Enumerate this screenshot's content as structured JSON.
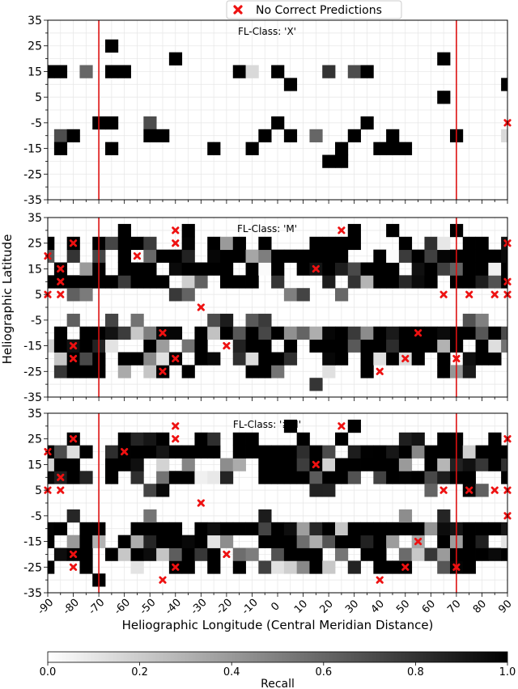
{
  "legend": {
    "label": "No Correct Predictions",
    "marker_color": "#ee1111"
  },
  "ylabel": "Heliographic Latitude",
  "xlabel": "Heliographic Longitude (Central Meridian Distance)",
  "colorbar": {
    "label": "Recall",
    "range": [
      0.0,
      1.0
    ],
    "ticks": [
      "0.0",
      "0.2",
      "0.4",
      "0.6",
      "0.8",
      "1.0"
    ],
    "colormap": [
      "#ffffff",
      "#000000"
    ]
  },
  "limit_line_color": "#dd1111",
  "chart_data": [
    {
      "type": "heatmap",
      "title": "FL-Class: 'X'",
      "bin_size_deg": 5,
      "xlim": [
        -90,
        90
      ],
      "ylim": [
        -35,
        35
      ],
      "xticks": [
        "-90",
        "-80",
        "-70",
        "-60",
        "-50",
        "-40",
        "-30",
        "-20",
        "-10",
        "0",
        "10",
        "20",
        "30",
        "40",
        "50",
        "60",
        "70",
        "80",
        "90"
      ],
      "yticks": [
        "35",
        "25",
        "15",
        "5",
        "-5",
        "-15",
        "-25",
        "-35"
      ],
      "vlines_x": [
        -70,
        70
      ],
      "cells": [
        [
          -65,
          25,
          1
        ],
        [
          -90,
          15,
          1
        ],
        [
          -85,
          15,
          1
        ],
        [
          -75,
          15,
          0.6
        ],
        [
          -65,
          15,
          1
        ],
        [
          -60,
          15,
          1
        ],
        [
          -40,
          20,
          1
        ],
        [
          -15,
          15,
          1
        ],
        [
          -10,
          15,
          0.15
        ],
        [
          0,
          15,
          1
        ],
        [
          20,
          15,
          0.8
        ],
        [
          30,
          15,
          0.7
        ],
        [
          35,
          15,
          1
        ],
        [
          5,
          10,
          1
        ],
        [
          65,
          20,
          1
        ],
        [
          65,
          5,
          1
        ],
        [
          90,
          10,
          1
        ],
        [
          -70,
          -5,
          1
        ],
        [
          -65,
          -5,
          1
        ],
        [
          -50,
          -5,
          0.7
        ],
        [
          -85,
          -10,
          0.7
        ],
        [
          -80,
          -10,
          1
        ],
        [
          -65,
          -15,
          1
        ],
        [
          -50,
          -10,
          1
        ],
        [
          -45,
          -10,
          1
        ],
        [
          -5,
          -10,
          1
        ],
        [
          0,
          -5,
          1
        ],
        [
          5,
          -10,
          1
        ],
        [
          15,
          -10,
          0.6
        ],
        [
          30,
          -10,
          1
        ],
        [
          35,
          -5,
          1
        ],
        [
          -85,
          -15,
          1
        ],
        [
          -25,
          -15,
          1
        ],
        [
          -10,
          -15,
          1
        ],
        [
          25,
          -15,
          1
        ],
        [
          25,
          -20,
          1
        ],
        [
          20,
          -20,
          1
        ],
        [
          40,
          -15,
          1
        ],
        [
          45,
          -15,
          1
        ],
        [
          50,
          -15,
          1
        ],
        [
          45,
          -10,
          1
        ],
        [
          70,
          -10,
          1
        ],
        [
          90,
          -10,
          0.15
        ]
      ],
      "no_correct_markers": [
        [
          90,
          -5
        ]
      ]
    },
    {
      "type": "heatmap",
      "title": "FL-Class: 'M'",
      "bin_size_deg": 5,
      "xlim": [
        -90,
        90
      ],
      "ylim": [
        -35,
        35
      ],
      "xticks": [
        "-90",
        "-80",
        "-70",
        "-60",
        "-50",
        "-40",
        "-30",
        "-20",
        "-10",
        "0",
        "10",
        "20",
        "30",
        "40",
        "50",
        "60",
        "70",
        "80",
        "90"
      ],
      "yticks": [
        "35",
        "25",
        "15",
        "5",
        "-5",
        "-15",
        "-25",
        "-35"
      ],
      "vlines_x": [
        -70,
        70
      ],
      "no_correct_markers": [
        [
          -80,
          25
        ],
        [
          -90,
          20
        ],
        [
          -55,
          20
        ],
        [
          -40,
          30
        ],
        [
          -40,
          25
        ],
        [
          25,
          30
        ],
        [
          90,
          25
        ],
        [
          -85,
          15
        ],
        [
          -85,
          10
        ],
        [
          -85,
          5
        ],
        [
          -90,
          5
        ],
        [
          15,
          15
        ],
        [
          90,
          10
        ],
        [
          65,
          5
        ],
        [
          75,
          5
        ],
        [
          85,
          5
        ],
        [
          90,
          5
        ],
        [
          -30,
          0
        ],
        [
          -45,
          -10
        ],
        [
          55,
          -10
        ],
        [
          -80,
          -15
        ],
        [
          -20,
          -15
        ],
        [
          -80,
          -20
        ],
        [
          -40,
          -20
        ],
        [
          50,
          -20
        ],
        [
          70,
          -20
        ],
        [
          -45,
          -25
        ],
        [
          40,
          -25
        ]
      ],
      "note": "cell values are generated deterministically by the page script for bands 25..15 and -5..-25"
    },
    {
      "type": "heatmap",
      "title": "FL-Class: '≥M'",
      "bin_size_deg": 5,
      "xlim": [
        -90,
        90
      ],
      "ylim": [
        -35,
        35
      ],
      "xticks": [
        "-90",
        "-80",
        "-70",
        "-60",
        "-50",
        "-40",
        "-30",
        "-20",
        "-10",
        "0",
        "10",
        "20",
        "30",
        "40",
        "50",
        "60",
        "70",
        "80",
        "90"
      ],
      "yticks": [
        "35",
        "25",
        "15",
        "5",
        "-5",
        "-15",
        "-25",
        "-35"
      ],
      "vlines_x": [
        -70,
        70
      ],
      "no_correct_markers": [
        [
          -80,
          25
        ],
        [
          -90,
          20
        ],
        [
          -60,
          20
        ],
        [
          -40,
          30
        ],
        [
          -40,
          25
        ],
        [
          25,
          30
        ],
        [
          90,
          25
        ],
        [
          -85,
          10
        ],
        [
          -85,
          5
        ],
        [
          -90,
          5
        ],
        [
          15,
          15
        ],
        [
          -30,
          0
        ],
        [
          65,
          5
        ],
        [
          75,
          5
        ],
        [
          85,
          5
        ],
        [
          90,
          5
        ],
        [
          90,
          -5
        ],
        [
          55,
          -15
        ],
        [
          -80,
          -20
        ],
        [
          -20,
          -20
        ],
        [
          -80,
          -25
        ],
        [
          -40,
          -25
        ],
        [
          50,
          -25
        ],
        [
          70,
          -25
        ],
        [
          -45,
          -30
        ],
        [
          40,
          -30
        ]
      ],
      "note": "cell values are generated deterministically by the page script"
    }
  ]
}
